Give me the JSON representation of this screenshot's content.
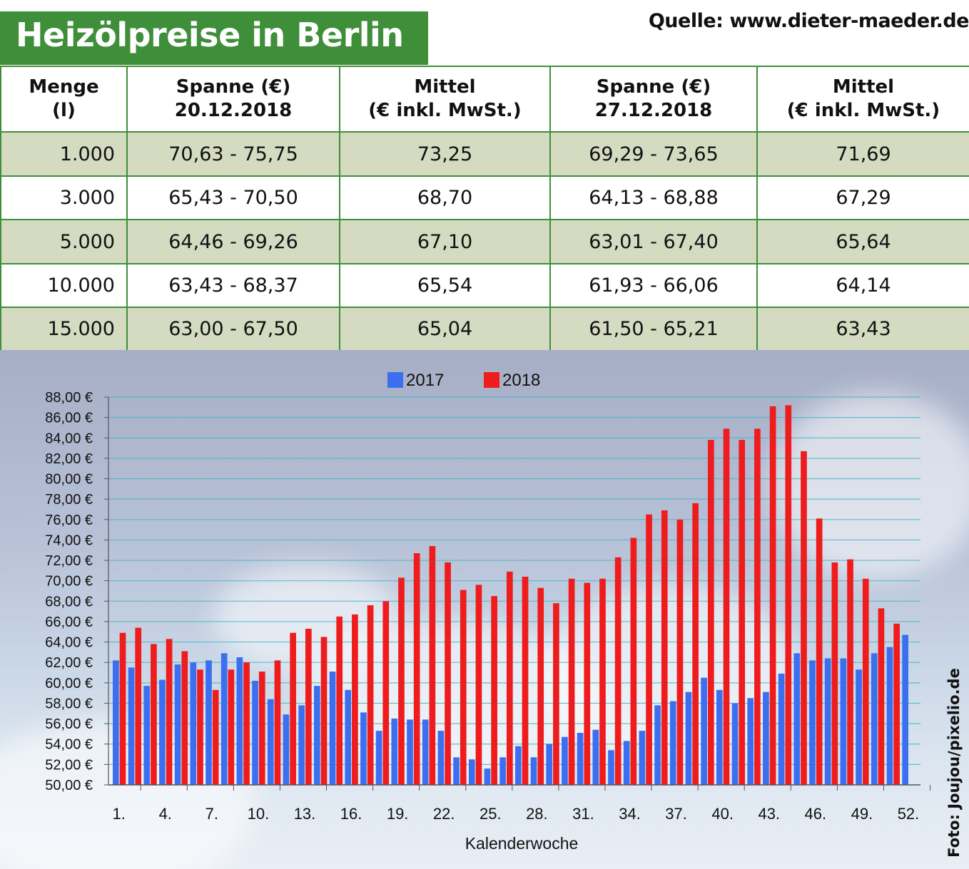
{
  "header": {
    "title": "Heizölpreise in Berlin",
    "source": "Quelle: www.dieter-maeder.de"
  },
  "table": {
    "headers": [
      {
        "line1": "Menge",
        "line2": "(l)"
      },
      {
        "line1": "Spanne (€)",
        "line2": "20.12.2018"
      },
      {
        "line1": "Mittel",
        "line2": "(€ inkl. MwSt.)"
      },
      {
        "line1": "Spanne (€)",
        "line2": "27.12.2018"
      },
      {
        "line1": "Mittel",
        "line2": "(€ inkl. MwSt.)"
      }
    ],
    "rows": [
      [
        "1.000",
        "70,63 - 75,75",
        "73,25",
        "69,29 - 73,65",
        "71,69"
      ],
      [
        "3.000",
        "65,43 - 70,50",
        "68,70",
        "64,13 - 68,88",
        "67,29"
      ],
      [
        "5.000",
        "64,46 - 69,26",
        "67,10",
        "63,01 - 67,40",
        "65,64"
      ],
      [
        "10.000",
        "63,43 - 68,37",
        "65,54",
        "61,93 - 66,06",
        "64,14"
      ],
      [
        "15.000",
        "63,00 - 67,50",
        "65,04",
        "61,50 - 65,21",
        "63,43"
      ]
    ]
  },
  "colors": {
    "green": "#3e8e3a",
    "row_shade": "#d4dbc1",
    "series_2017": "#3b6ff0",
    "series_2018": "#ee1c1c"
  },
  "photo_credit": "Foto: Joujou/pixelio.de",
  "chart_data": {
    "type": "bar",
    "xlabel": "Kalenderwoche",
    "ylabel": "",
    "ylim": [
      50,
      88
    ],
    "y_ticks": [
      "50,00 €",
      "52,00 €",
      "54,00 €",
      "56,00 €",
      "58,00 €",
      "60,00 €",
      "62,00 €",
      "64,00 €",
      "66,00 €",
      "68,00 €",
      "70,00 €",
      "72,00 €",
      "74,00 €",
      "76,00 €",
      "78,00 €",
      "80,00 €",
      "82,00 €",
      "84,00 €",
      "86,00 €",
      "88,00 €"
    ],
    "x_tick_labels": [
      "1.",
      "4.",
      "7.",
      "10.",
      "13.",
      "16.",
      "19.",
      "22.",
      "25.",
      "28.",
      "31.",
      "34.",
      "37.",
      "40.",
      "43.",
      "46.",
      "49.",
      "52."
    ],
    "weeks": [
      1,
      2,
      3,
      4,
      5,
      6,
      7,
      8,
      9,
      10,
      11,
      12,
      13,
      14,
      15,
      16,
      17,
      18,
      19,
      20,
      21,
      22,
      23,
      24,
      25,
      26,
      27,
      28,
      29,
      30,
      31,
      32,
      33,
      34,
      35,
      36,
      37,
      38,
      39,
      40,
      41,
      42,
      43,
      44,
      45,
      46,
      47,
      48,
      49,
      50,
      51,
      52
    ],
    "grid": true,
    "legend": "top-center",
    "series": [
      {
        "name": "2017",
        "values": [
          62.2,
          61.5,
          59.7,
          60.3,
          61.8,
          62.0,
          62.2,
          62.9,
          62.5,
          60.2,
          58.4,
          56.9,
          57.8,
          59.7,
          61.1,
          59.3,
          57.1,
          55.3,
          56.5,
          56.4,
          56.4,
          55.3,
          52.7,
          52.5,
          51.6,
          52.7,
          53.8,
          52.7,
          54.0,
          54.7,
          55.1,
          55.4,
          53.4,
          54.3,
          55.3,
          57.8,
          58.2,
          59.1,
          60.5,
          59.3,
          58.0,
          58.5,
          59.1,
          60.9,
          62.9,
          62.2,
          62.4,
          62.4,
          61.3,
          62.9,
          63.5,
          64.7
        ]
      },
      {
        "name": "2018",
        "values": [
          64.9,
          65.4,
          63.8,
          64.3,
          63.1,
          61.3,
          59.3,
          61.3,
          62.0,
          61.1,
          62.2,
          64.9,
          65.3,
          64.5,
          66.5,
          66.7,
          67.6,
          68.0,
          70.3,
          72.7,
          73.4,
          71.8,
          69.1,
          69.6,
          68.5,
          70.9,
          70.4,
          69.3,
          67.8,
          70.2,
          69.8,
          70.2,
          72.3,
          74.2,
          76.5,
          76.9,
          76.0,
          77.6,
          83.8,
          84.9,
          83.8,
          84.9,
          87.1,
          87.2,
          82.7,
          76.1,
          71.8,
          72.1,
          70.2,
          67.3,
          65.8,
          null
        ]
      }
    ]
  }
}
